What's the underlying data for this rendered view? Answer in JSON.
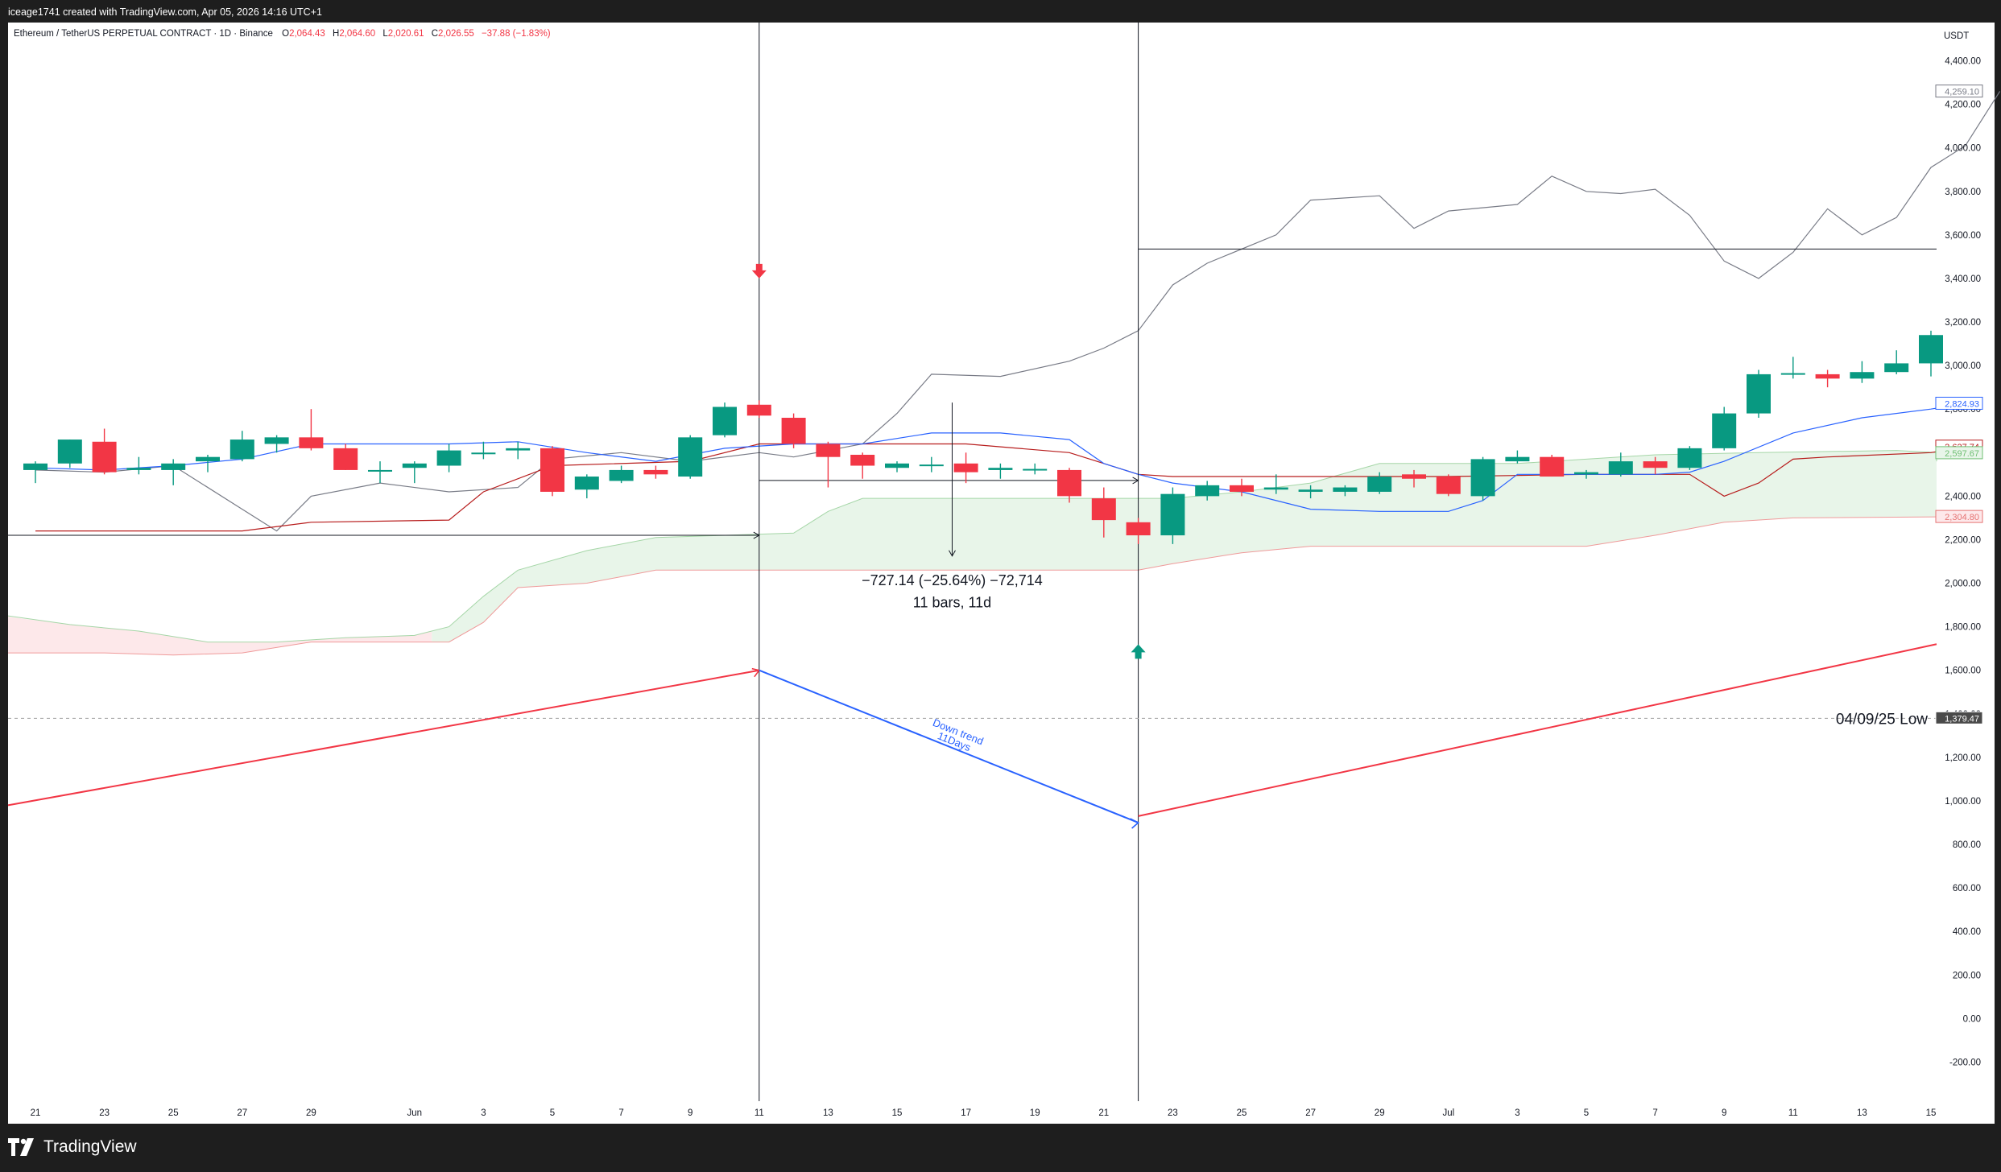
{
  "header": {
    "creator_line": "iceage1741 created with TradingView.com, Apr 05, 2026 14:16 UTC+1"
  },
  "legend": {
    "symbol": "Ethereum / TetherUS PERPETUAL CONTRACT · 1D · Binance",
    "o_label": "O",
    "o_value": "2,064.43",
    "h_label": "H",
    "h_value": "2,064.60",
    "l_label": "L",
    "l_value": "2,020.61",
    "c_label": "C",
    "c_value": "2,026.55",
    "change": "−37.88 (−1.83%)"
  },
  "footer": {
    "brand": "TradingView"
  },
  "colors": {
    "up": "#089981",
    "down": "#f23645",
    "tenkan": "#2962ff",
    "kijun": "#b71c1c",
    "lagging": "#787b86",
    "cloud_up": "#e8f5e9",
    "cloud_down": "#fde8ea"
  },
  "chart_data": {
    "type": "candlestick",
    "currency_label": "USDT",
    "ylim": [
      -260,
      4450
    ],
    "y_ticks": [
      "4,400.00",
      "4,200.00",
      "4,000.00",
      "3,800.00",
      "3,600.00",
      "3,400.00",
      "3,200.00",
      "3,000.00",
      "2,800.00",
      "2,600.00",
      "2,400.00",
      "2,200.00",
      "2,000.00",
      "1,800.00",
      "1,600.00",
      "1,400.00",
      "1,200.00",
      "1,000.00",
      "800.00",
      "600.00",
      "400.00",
      "200.00",
      "0.00",
      "-200.00"
    ],
    "y_tick_values": [
      4400,
      4200,
      4000,
      3800,
      3600,
      3400,
      3200,
      3000,
      2800,
      2600,
      2400,
      2200,
      2000,
      1800,
      1600,
      1400,
      1200,
      1000,
      800,
      600,
      400,
      200,
      0,
      -200
    ],
    "x_labels": [
      {
        "i": 0,
        "t": "21"
      },
      {
        "i": 2,
        "t": "23"
      },
      {
        "i": 4,
        "t": "25"
      },
      {
        "i": 6,
        "t": "27"
      },
      {
        "i": 8,
        "t": "29"
      },
      {
        "i": 11,
        "t": "Jun"
      },
      {
        "i": 13,
        "t": "3"
      },
      {
        "i": 15,
        "t": "5"
      },
      {
        "i": 17,
        "t": "7"
      },
      {
        "i": 19,
        "t": "9"
      },
      {
        "i": 21,
        "t": "11"
      },
      {
        "i": 23,
        "t": "13"
      },
      {
        "i": 25,
        "t": "15"
      },
      {
        "i": 27,
        "t": "17"
      },
      {
        "i": 29,
        "t": "19"
      },
      {
        "i": 31,
        "t": "21"
      },
      {
        "i": 33,
        "t": "23"
      },
      {
        "i": 35,
        "t": "25"
      },
      {
        "i": 37,
        "t": "27"
      },
      {
        "i": 39,
        "t": "29"
      },
      {
        "i": 41,
        "t": "Jul"
      },
      {
        "i": 43,
        "t": "3"
      },
      {
        "i": 45,
        "t": "5"
      },
      {
        "i": 47,
        "t": "7"
      },
      {
        "i": 49,
        "t": "9"
      },
      {
        "i": 51,
        "t": "11"
      },
      {
        "i": 53,
        "t": "13"
      },
      {
        "i": 55,
        "t": "15"
      }
    ],
    "candles": [
      {
        "o": 2520,
        "h": 2560,
        "l": 2460,
        "c": 2550
      },
      {
        "o": 2550,
        "h": 2660,
        "l": 2530,
        "c": 2660
      },
      {
        "o": 2650,
        "h": 2710,
        "l": 2500,
        "c": 2510
      },
      {
        "o": 2520,
        "h": 2580,
        "l": 2500,
        "c": 2530
      },
      {
        "o": 2520,
        "h": 2570,
        "l": 2450,
        "c": 2550
      },
      {
        "o": 2560,
        "h": 2590,
        "l": 2510,
        "c": 2580
      },
      {
        "o": 2570,
        "h": 2700,
        "l": 2560,
        "c": 2660
      },
      {
        "o": 2640,
        "h": 2680,
        "l": 2600,
        "c": 2670
      },
      {
        "o": 2670,
        "h": 2800,
        "l": 2610,
        "c": 2620
      },
      {
        "o": 2620,
        "h": 2640,
        "l": 2520,
        "c": 2520
      },
      {
        "o": 2520,
        "h": 2560,
        "l": 2460,
        "c": 2520
      },
      {
        "o": 2530,
        "h": 2560,
        "l": 2460,
        "c": 2550
      },
      {
        "o": 2540,
        "h": 2640,
        "l": 2510,
        "c": 2610
      },
      {
        "o": 2600,
        "h": 2650,
        "l": 2570,
        "c": 2600
      },
      {
        "o": 2610,
        "h": 2650,
        "l": 2570,
        "c": 2620
      },
      {
        "o": 2620,
        "h": 2630,
        "l": 2400,
        "c": 2420
      },
      {
        "o": 2430,
        "h": 2500,
        "l": 2390,
        "c": 2490
      },
      {
        "o": 2470,
        "h": 2540,
        "l": 2460,
        "c": 2520
      },
      {
        "o": 2520,
        "h": 2540,
        "l": 2480,
        "c": 2500
      },
      {
        "o": 2490,
        "h": 2680,
        "l": 2480,
        "c": 2670
      },
      {
        "o": 2680,
        "h": 2830,
        "l": 2670,
        "c": 2810
      },
      {
        "o": 2820,
        "h": 2840,
        "l": 2760,
        "c": 2770
      },
      {
        "o": 2760,
        "h": 2780,
        "l": 2620,
        "c": 2640
      },
      {
        "o": 2640,
        "h": 2650,
        "l": 2440,
        "c": 2580
      },
      {
        "o": 2590,
        "h": 2600,
        "l": 2480,
        "c": 2540
      },
      {
        "o": 2530,
        "h": 2560,
        "l": 2510,
        "c": 2550
      },
      {
        "o": 2540,
        "h": 2580,
        "l": 2510,
        "c": 2545
      },
      {
        "o": 2550,
        "h": 2600,
        "l": 2460,
        "c": 2510
      },
      {
        "o": 2520,
        "h": 2550,
        "l": 2480,
        "c": 2530
      },
      {
        "o": 2520,
        "h": 2550,
        "l": 2500,
        "c": 2525
      },
      {
        "o": 2520,
        "h": 2530,
        "l": 2370,
        "c": 2400
      },
      {
        "o": 2390,
        "h": 2440,
        "l": 2210,
        "c": 2290
      },
      {
        "o": 2280,
        "h": 2300,
        "l": 2180,
        "c": 2220
      },
      {
        "o": 2220,
        "h": 2440,
        "l": 2180,
        "c": 2410
      },
      {
        "o": 2400,
        "h": 2470,
        "l": 2380,
        "c": 2450
      },
      {
        "o": 2450,
        "h": 2480,
        "l": 2400,
        "c": 2420
      },
      {
        "o": 2430,
        "h": 2500,
        "l": 2410,
        "c": 2440
      },
      {
        "o": 2420,
        "h": 2450,
        "l": 2390,
        "c": 2430
      },
      {
        "o": 2420,
        "h": 2450,
        "l": 2400,
        "c": 2440
      },
      {
        "o": 2420,
        "h": 2510,
        "l": 2410,
        "c": 2490
      },
      {
        "o": 2500,
        "h": 2520,
        "l": 2440,
        "c": 2480
      },
      {
        "o": 2490,
        "h": 2500,
        "l": 2400,
        "c": 2410
      },
      {
        "o": 2400,
        "h": 2580,
        "l": 2380,
        "c": 2570
      },
      {
        "o": 2560,
        "h": 2610,
        "l": 2550,
        "c": 2580
      },
      {
        "o": 2580,
        "h": 2590,
        "l": 2490,
        "c": 2490
      },
      {
        "o": 2500,
        "h": 2520,
        "l": 2480,
        "c": 2510
      },
      {
        "o": 2500,
        "h": 2600,
        "l": 2490,
        "c": 2560
      },
      {
        "o": 2560,
        "h": 2580,
        "l": 2500,
        "c": 2530
      },
      {
        "o": 2530,
        "h": 2630,
        "l": 2520,
        "c": 2620
      },
      {
        "o": 2620,
        "h": 2810,
        "l": 2610,
        "c": 2780
      },
      {
        "o": 2780,
        "h": 2980,
        "l": 2760,
        "c": 2960
      },
      {
        "o": 2960,
        "h": 3040,
        "l": 2940,
        "c": 2965
      },
      {
        "o": 2960,
        "h": 2980,
        "l": 2900,
        "c": 2940
      },
      {
        "o": 2940,
        "h": 3020,
        "l": 2920,
        "c": 2970
      },
      {
        "o": 2970,
        "h": 3070,
        "l": 2960,
        "c": 3010
      },
      {
        "o": 3010,
        "h": 3160,
        "l": 2950,
        "c": 3140
      }
    ],
    "tenkan": [
      [
        0,
        2530
      ],
      [
        2,
        2520
      ],
      [
        4,
        2540
      ],
      [
        6,
        2570
      ],
      [
        8,
        2640
      ],
      [
        10,
        2640
      ],
      [
        12,
        2640
      ],
      [
        14,
        2650
      ],
      [
        16,
        2600
      ],
      [
        18,
        2560
      ],
      [
        20,
        2620
      ],
      [
        22,
        2640
      ],
      [
        24,
        2640
      ],
      [
        26,
        2690
      ],
      [
        28,
        2690
      ],
      [
        30,
        2660
      ],
      [
        31,
        2550
      ],
      [
        32,
        2500
      ],
      [
        33,
        2460
      ],
      [
        35,
        2420
      ],
      [
        37,
        2340
      ],
      [
        39,
        2330
      ],
      [
        41,
        2330
      ],
      [
        42,
        2380
      ],
      [
        43,
        2500
      ],
      [
        45,
        2500
      ],
      [
        47,
        2500
      ],
      [
        48,
        2510
      ],
      [
        49,
        2560
      ],
      [
        51,
        2690
      ],
      [
        53,
        2760
      ],
      [
        55,
        2800
      ],
      [
        56,
        2825
      ]
    ],
    "kijun": [
      [
        0,
        2240
      ],
      [
        6,
        2240
      ],
      [
        8,
        2280
      ],
      [
        12,
        2290
      ],
      [
        13,
        2420
      ],
      [
        15,
        2540
      ],
      [
        19,
        2560
      ],
      [
        21,
        2640
      ],
      [
        27,
        2640
      ],
      [
        30,
        2600
      ],
      [
        32,
        2500
      ],
      [
        33,
        2490
      ],
      [
        41,
        2490
      ],
      [
        45,
        2500
      ],
      [
        48,
        2500
      ],
      [
        49,
        2400
      ],
      [
        50,
        2460
      ],
      [
        51,
        2570
      ],
      [
        52,
        2580
      ],
      [
        55,
        2600
      ],
      [
        56,
        2628
      ]
    ],
    "lagging": [
      [
        0,
        2520
      ],
      [
        2,
        2510
      ],
      [
        4,
        2540
      ],
      [
        6,
        2340
      ],
      [
        7,
        2240
      ],
      [
        8,
        2400
      ],
      [
        10,
        2460
      ],
      [
        12,
        2420
      ],
      [
        14,
        2440
      ],
      [
        15,
        2570
      ],
      [
        17,
        2600
      ],
      [
        19,
        2560
      ],
      [
        21,
        2600
      ],
      [
        22,
        2580
      ],
      [
        24,
        2640
      ],
      [
        25,
        2780
      ],
      [
        26,
        2960
      ],
      [
        28,
        2950
      ],
      [
        30,
        3020
      ],
      [
        31,
        3080
      ],
      [
        32,
        3160
      ],
      [
        33,
        3370
      ],
      [
        34,
        3470
      ],
      [
        36,
        3600
      ],
      [
        37,
        3760
      ],
      [
        39,
        3780
      ],
      [
        40,
        3630
      ],
      [
        41,
        3710
      ],
      [
        43,
        3740
      ],
      [
        44,
        3870
      ],
      [
        45,
        3800
      ],
      [
        46,
        3790
      ],
      [
        47,
        3810
      ],
      [
        48,
        3690
      ],
      [
        49,
        3480
      ],
      [
        50,
        3400
      ],
      [
        51,
        3520
      ],
      [
        52,
        3720
      ],
      [
        53,
        3600
      ],
      [
        54,
        3680
      ],
      [
        55,
        3910
      ],
      [
        56,
        4010
      ],
      [
        57,
        4260
      ]
    ],
    "span_a": [
      [
        -1,
        1850
      ],
      [
        1,
        1810
      ],
      [
        3,
        1780
      ],
      [
        5,
        1730
      ],
      [
        7,
        1730
      ],
      [
        9,
        1750
      ],
      [
        11,
        1760
      ],
      [
        12,
        1800
      ],
      [
        13,
        1940
      ],
      [
        14,
        2060
      ],
      [
        16,
        2150
      ],
      [
        18,
        2210
      ],
      [
        22,
        2230
      ],
      [
        23,
        2330
      ],
      [
        24,
        2390
      ],
      [
        33,
        2390
      ],
      [
        35,
        2420
      ],
      [
        37,
        2460
      ],
      [
        39,
        2550
      ],
      [
        43,
        2550
      ],
      [
        47,
        2590
      ],
      [
        50,
        2600
      ],
      [
        54,
        2610
      ],
      [
        56,
        2600
      ],
      [
        57,
        2560
      ]
    ],
    "span_b": [
      [
        -1,
        1680
      ],
      [
        2,
        1680
      ],
      [
        4,
        1670
      ],
      [
        6,
        1680
      ],
      [
        8,
        1730
      ],
      [
        12,
        1730
      ],
      [
        13,
        1820
      ],
      [
        14,
        1980
      ],
      [
        16,
        2000
      ],
      [
        18,
        2060
      ],
      [
        32,
        2060
      ],
      [
        33,
        2090
      ],
      [
        35,
        2140
      ],
      [
        37,
        2170
      ],
      [
        45,
        2170
      ],
      [
        47,
        2220
      ],
      [
        49,
        2280
      ],
      [
        51,
        2300
      ],
      [
        56,
        2305
      ],
      [
        57,
        2305
      ]
    ],
    "price_labels": [
      {
        "v": 4259.1,
        "t": "4,259.10",
        "color": "#787b86",
        "bg": "#ffffff"
      },
      {
        "v": 2824.93,
        "t": "2,824.93",
        "color": "#2962ff",
        "bg": "#ffffff"
      },
      {
        "v": 2627.74,
        "t": "2,627.74",
        "color": "#b71c1c",
        "bg": "#ffffff"
      },
      {
        "v": 2597.67,
        "t": "2,597.67",
        "color": "#6fbf73",
        "bg": "#e8f5e9"
      },
      {
        "v": 2304.8,
        "t": "2,304.80",
        "color": "#e57373",
        "bg": "#fde8ea"
      },
      {
        "v": 1379.47,
        "t": "1,379.47",
        "color": "#ffffff",
        "bg": "#4a4a4a"
      }
    ],
    "horizontal_line": {
      "v": 1379.47,
      "label": "04/09/25 Low"
    },
    "measure": {
      "line1": "−727.14 (−25.64%) −72,714",
      "line2": "11 bars, 11d"
    },
    "trend_label": {
      "line1": "Down trend",
      "line2": "11Days"
    }
  }
}
